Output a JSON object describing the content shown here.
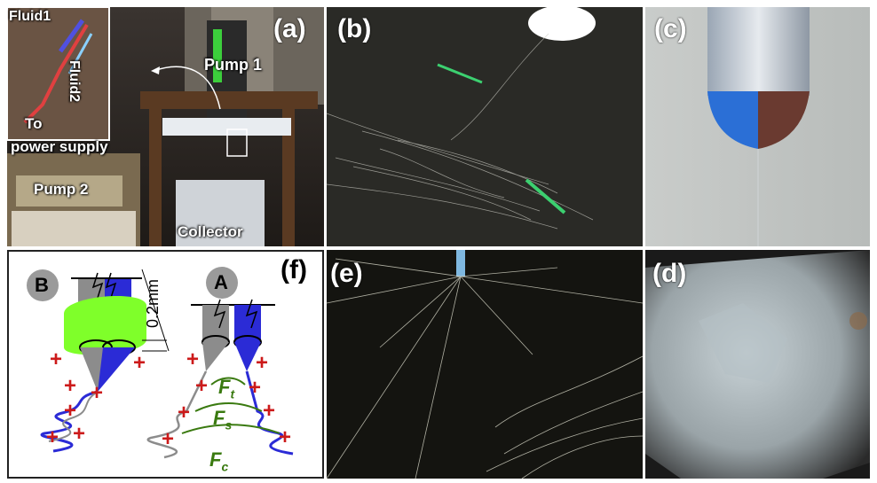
{
  "panel_a": {
    "label": "(a)",
    "fluid1": "Fluid1",
    "fluid2": "Fluid2",
    "to": "To",
    "power_supply": "power supply",
    "pump1": "Pump 1",
    "pump2": "Pump 2",
    "collector": "Collector"
  },
  "panel_b": {
    "label": "(b)"
  },
  "panel_c": {
    "label": "(c)"
  },
  "panel_d": {
    "label": "(d)"
  },
  "panel_e": {
    "label": "(e)"
  },
  "panel_f": {
    "label": "(f)",
    "badge_b": "B",
    "badge_a": "A",
    "dim_value": "0.2",
    "dim_unit": "mm",
    "ft_main": "F",
    "ft_sub": "t",
    "fs_main": "F",
    "fs_sub": "s",
    "fc_main": "F",
    "fc_sub": "c",
    "plus": "+"
  },
  "colors": {
    "diagram_blue": "#2b2bd6",
    "diagram_gray": "#8c8c8c",
    "diagram_green": "#7fff2a",
    "plus_red": "#cc1a1a",
    "force_green": "#3a7a10"
  }
}
